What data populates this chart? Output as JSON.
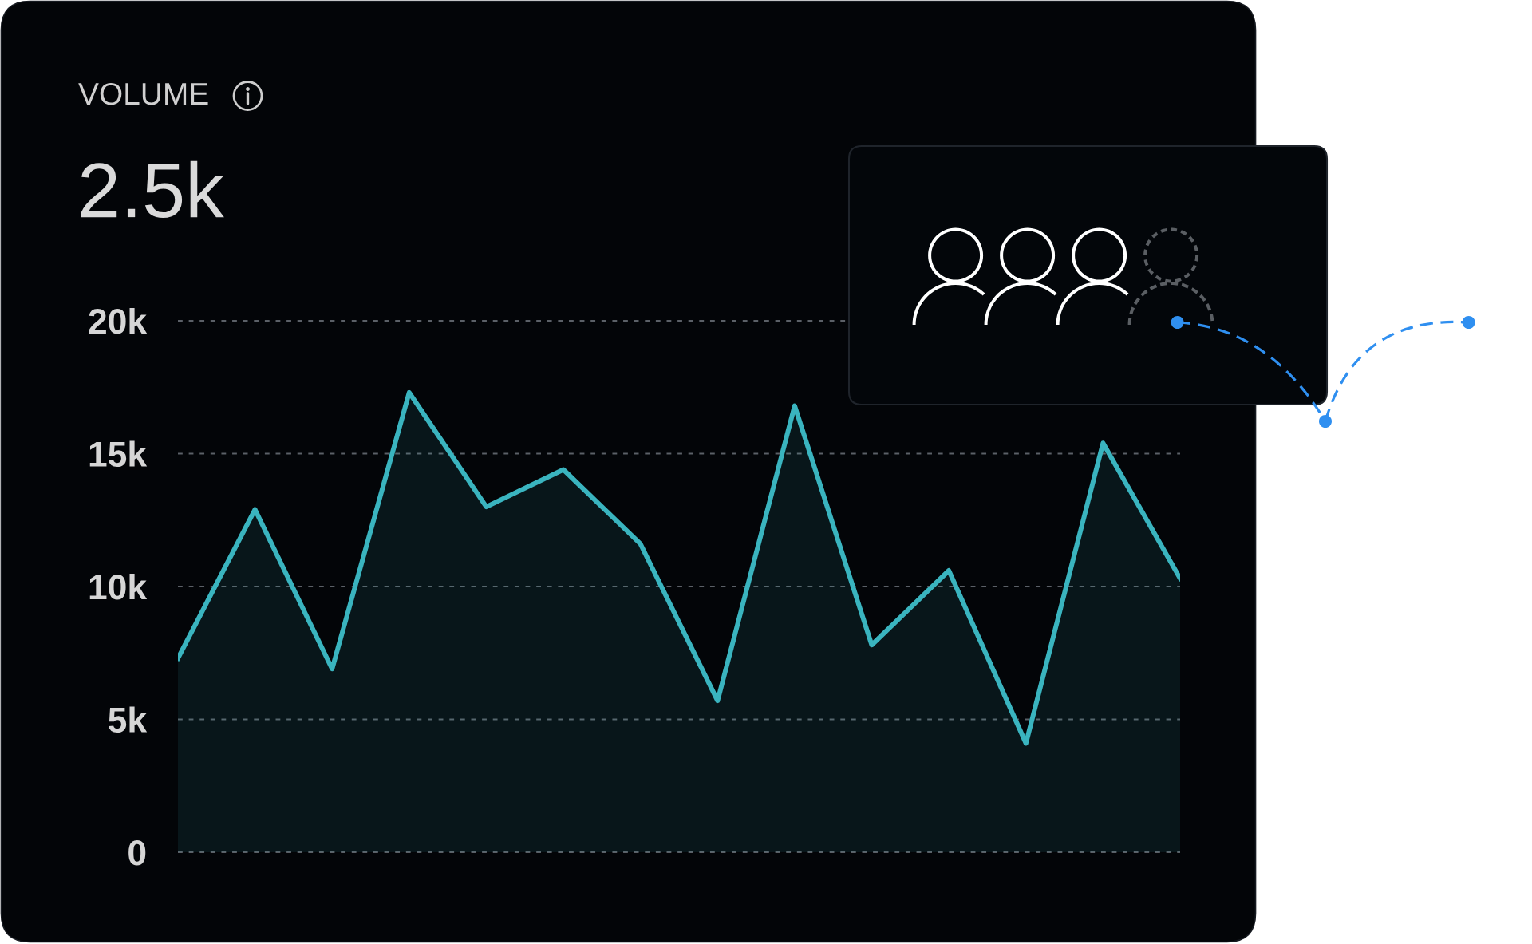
{
  "chart_data": {
    "type": "area",
    "title": "VOLUME",
    "subtitle": "2.5k",
    "categories": [
      null,
      null,
      null,
      null,
      null,
      null,
      null,
      null,
      null,
      null,
      null,
      null,
      null,
      null
    ],
    "series": [
      {
        "color": "#3ab4bf",
        "values": [
          7300,
          12900,
          6900,
          17300,
          13000,
          14400,
          11600,
          5700,
          16800,
          7800,
          10600,
          4100,
          15400,
          10300
        ]
      }
    ],
    "ylim": [
      0,
      20000
    ],
    "yticks": [
      0,
      {
        "value": 5000,
        "label": "5k"
      },
      {
        "value": 10000,
        "label": "10k"
      },
      {
        "value": 15000,
        "label": "15k"
      },
      {
        "value": 20000,
        "label": "20k"
      }
    ],
    "grid": "y",
    "tick_labels": "y"
  }
}
